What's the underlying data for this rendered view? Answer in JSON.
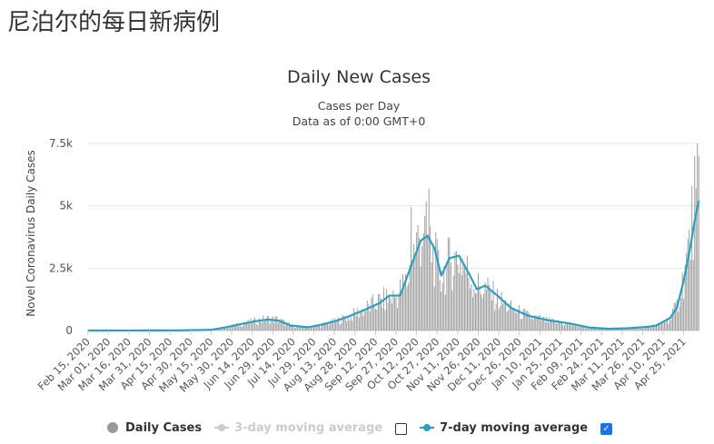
{
  "page": {
    "heading": "尼泊尔的每日新病例"
  },
  "chart_data": {
    "type": "bar",
    "title": "Daily New Cases",
    "subtitle_line1": "Cases per Day",
    "subtitle_line2": "Data as of 0:00 GMT+0",
    "ylabel": "Novel Coronavirus Daily Cases",
    "ylim": [
      0,
      7500
    ],
    "y_ticks": [
      0,
      2500,
      5000,
      7500
    ],
    "y_tick_labels": [
      "0",
      "2.5k",
      "5k",
      "7.5k"
    ],
    "x_range": [
      "2020-02-15",
      "2021-05-06"
    ],
    "x_ticks": [
      "2020-02-15",
      "2020-03-01",
      "2020-03-16",
      "2020-03-31",
      "2020-04-15",
      "2020-04-30",
      "2020-05-15",
      "2020-05-30",
      "2020-06-14",
      "2020-06-29",
      "2020-07-14",
      "2020-07-29",
      "2020-08-13",
      "2020-08-28",
      "2020-09-12",
      "2020-09-27",
      "2020-10-12",
      "2020-10-27",
      "2020-11-11",
      "2020-11-26",
      "2020-12-11",
      "2020-12-26",
      "2021-01-10",
      "2021-01-25",
      "2021-02-09",
      "2021-02-24",
      "2021-03-11",
      "2021-03-26",
      "2021-04-10",
      "2021-04-25"
    ],
    "x_tick_labels": [
      "Feb 15, 2020",
      "Mar 01, 2020",
      "Mar 16, 2020",
      "Mar 31, 2020",
      "Apr 15, 2020",
      "Apr 30, 2020",
      "May 15, 2020",
      "May 30, 2020",
      "Jun 14, 2020",
      "Jun 29, 2020",
      "Jul 14, 2020",
      "Jul 29, 2020",
      "Aug 13, 2020",
      "Aug 28, 2020",
      "Sep 12, 2020",
      "Sep 27, 2020",
      "Oct 12, 2020",
      "Oct 27, 2020",
      "Nov 11, 2020",
      "Nov 26, 2020",
      "Dec 11, 2020",
      "Dec 26, 2020",
      "Jan 10, 2021",
      "Jan 25, 2021",
      "Feb 09, 2021",
      "Feb 24, 2021",
      "Mar 11, 2021",
      "Mar 26, 2021",
      "Apr 10, 2021",
      "Apr 25, 2021"
    ],
    "grid": true,
    "legend_position": "bottom",
    "series": [
      {
        "name": "Daily Cases",
        "kind": "bar",
        "color": "#999999",
        "visible": true,
        "points": [
          [
            "2020-02-15",
            0
          ],
          [
            "2020-04-20",
            5
          ],
          [
            "2020-05-15",
            30
          ],
          [
            "2020-05-25",
            120
          ],
          [
            "2020-06-05",
            250
          ],
          [
            "2020-06-15",
            380
          ],
          [
            "2020-06-25",
            480
          ],
          [
            "2020-07-03",
            450
          ],
          [
            "2020-07-12",
            200
          ],
          [
            "2020-07-25",
            120
          ],
          [
            "2020-08-05",
            250
          ],
          [
            "2020-08-15",
            400
          ],
          [
            "2020-08-25",
            600
          ],
          [
            "2020-09-05",
            900
          ],
          [
            "2020-09-15",
            1200
          ],
          [
            "2020-09-27",
            1400
          ],
          [
            "2020-10-05",
            2000
          ],
          [
            "2020-10-10",
            3200
          ],
          [
            "2020-10-15",
            4000
          ],
          [
            "2020-10-20",
            3800
          ],
          [
            "2020-10-25",
            3000
          ],
          [
            "2020-10-30",
            2200
          ],
          [
            "2020-11-05",
            2800
          ],
          [
            "2020-11-12",
            3000
          ],
          [
            "2020-11-20",
            2200
          ],
          [
            "2020-11-25",
            1800
          ],
          [
            "2020-12-01",
            1700
          ],
          [
            "2020-12-10",
            1300
          ],
          [
            "2020-12-20",
            900
          ],
          [
            "2021-01-01",
            600
          ],
          [
            "2021-01-15",
            400
          ],
          [
            "2021-02-01",
            250
          ],
          [
            "2021-02-15",
            130
          ],
          [
            "2021-03-01",
            80
          ],
          [
            "2021-03-15",
            90
          ],
          [
            "2021-03-30",
            150
          ],
          [
            "2021-04-05",
            200
          ],
          [
            "2021-04-15",
            500
          ],
          [
            "2021-04-20",
            1000
          ],
          [
            "2021-04-25",
            2200
          ],
          [
            "2021-04-30",
            3800
          ],
          [
            "2021-05-03",
            5500
          ],
          [
            "2021-05-06",
            7000
          ]
        ],
        "spikes": [
          [
            "2020-10-08",
            4950
          ],
          [
            "2020-10-21",
            5700
          ],
          [
            "2020-10-17",
            3900
          ],
          [
            "2021-05-06",
            7000
          ],
          [
            "2021-05-04",
            5700
          ]
        ]
      },
      {
        "name": "3-day moving average",
        "kind": "line",
        "color": "#cccccc",
        "visible": false
      },
      {
        "name": "7-day moving average",
        "kind": "line",
        "color": "#2b9fc1",
        "visible": true,
        "points": [
          [
            "2020-02-15",
            0
          ],
          [
            "2020-04-20",
            5
          ],
          [
            "2020-05-15",
            30
          ],
          [
            "2020-05-25",
            120
          ],
          [
            "2020-06-05",
            250
          ],
          [
            "2020-06-15",
            360
          ],
          [
            "2020-06-25",
            440
          ],
          [
            "2020-07-03",
            400
          ],
          [
            "2020-07-12",
            200
          ],
          [
            "2020-07-25",
            130
          ],
          [
            "2020-08-05",
            250
          ],
          [
            "2020-08-15",
            400
          ],
          [
            "2020-08-25",
            600
          ],
          [
            "2020-09-05",
            850
          ],
          [
            "2020-09-15",
            1100
          ],
          [
            "2020-09-22",
            1400
          ],
          [
            "2020-09-30",
            1400
          ],
          [
            "2020-10-08",
            2600
          ],
          [
            "2020-10-15",
            3600
          ],
          [
            "2020-10-20",
            3800
          ],
          [
            "2020-10-25",
            3300
          ],
          [
            "2020-10-30",
            2200
          ],
          [
            "2020-11-05",
            2900
          ],
          [
            "2020-11-12",
            3000
          ],
          [
            "2020-11-20",
            2200
          ],
          [
            "2020-11-25",
            1650
          ],
          [
            "2020-12-01",
            1800
          ],
          [
            "2020-12-10",
            1400
          ],
          [
            "2020-12-20",
            900
          ],
          [
            "2021-01-01",
            600
          ],
          [
            "2021-01-15",
            420
          ],
          [
            "2021-02-01",
            280
          ],
          [
            "2021-02-15",
            120
          ],
          [
            "2021-03-01",
            70
          ],
          [
            "2021-03-15",
            90
          ],
          [
            "2021-03-30",
            150
          ],
          [
            "2021-04-05",
            200
          ],
          [
            "2021-04-15",
            500
          ],
          [
            "2021-04-20",
            900
          ],
          [
            "2021-04-25",
            2000
          ],
          [
            "2021-04-30",
            3400
          ],
          [
            "2021-05-03",
            4400
          ],
          [
            "2021-05-06",
            5200
          ]
        ]
      }
    ]
  },
  "legend": {
    "items": [
      {
        "label": "Daily Cases",
        "enabled": true
      },
      {
        "label": "3-day moving average",
        "enabled": false,
        "checked": false
      },
      {
        "label": "7-day moving average",
        "enabled": true,
        "checked": true
      }
    ]
  },
  "icons": {
    "checkbox_checked": "check-icon"
  }
}
